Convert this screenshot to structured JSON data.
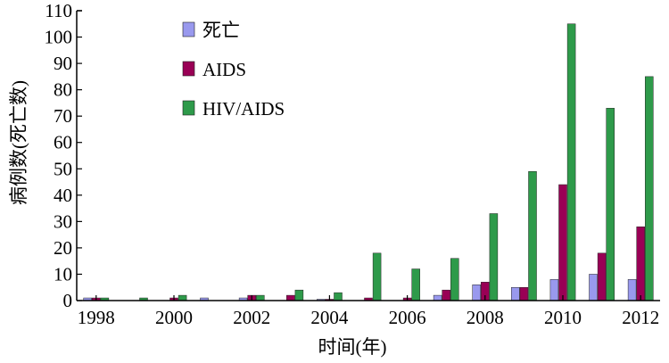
{
  "chart_data": {
    "type": "bar",
    "title": "",
    "xlabel": "时间(年)",
    "ylabel": "病例数(死亡数)",
    "categories": [
      "1998",
      "1999",
      "2000",
      "2001",
      "2002",
      "2003",
      "2004",
      "2005",
      "2006",
      "2007",
      "2008",
      "2009",
      "2010",
      "2011",
      "2012"
    ],
    "x_tick_labels": [
      "1998",
      "2000",
      "2002",
      "2004",
      "2006",
      "2008",
      "2010",
      "2012"
    ],
    "y_ticks": [
      0,
      10,
      20,
      30,
      40,
      50,
      60,
      70,
      80,
      90,
      100,
      110
    ],
    "ylim": [
      0,
      110
    ],
    "grid": false,
    "legend_position": "top-left",
    "series": [
      {
        "name": "死亡",
        "color": "#9999ee",
        "values": [
          1,
          0,
          0,
          1,
          1,
          0,
          0.5,
          0,
          0,
          2,
          6,
          5,
          8,
          10,
          8
        ]
      },
      {
        "name": "AIDS",
        "color": "#990055",
        "values": [
          1,
          0,
          1,
          0,
          2,
          2,
          0.5,
          1,
          1,
          4,
          7,
          5,
          44,
          18,
          28
        ]
      },
      {
        "name": "HIV/AIDS",
        "color": "#2e9a4a",
        "values": [
          1,
          1,
          2,
          0,
          2,
          4,
          3,
          18,
          12,
          16,
          33,
          49,
          105,
          73,
          85
        ]
      }
    ]
  }
}
